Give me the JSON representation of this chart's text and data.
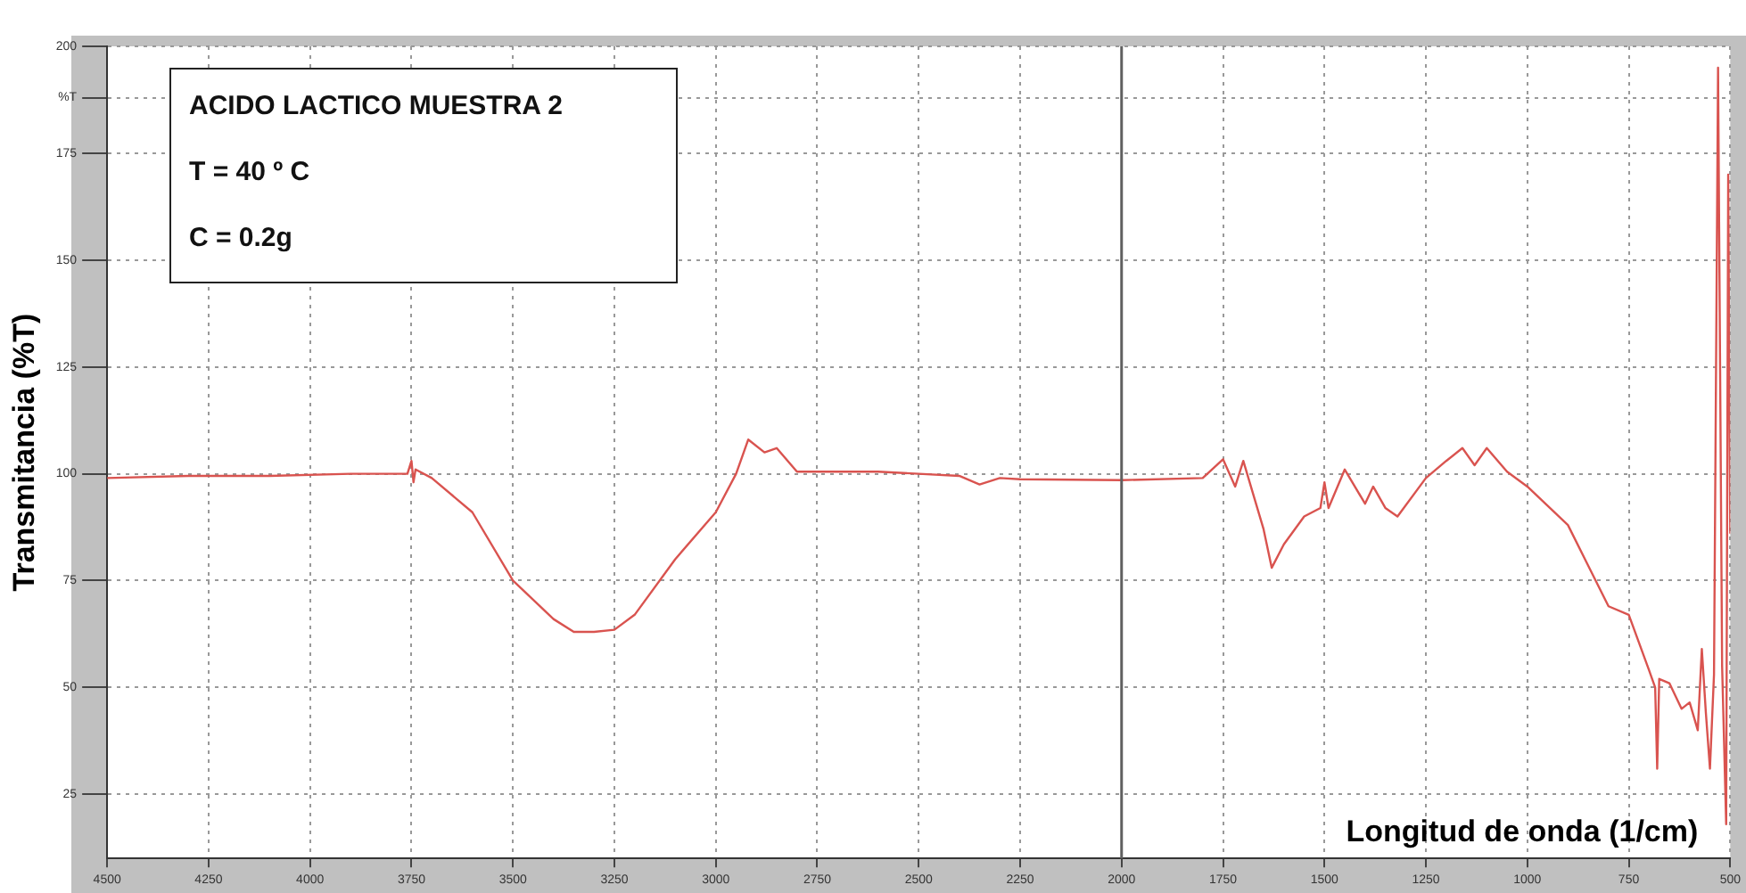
{
  "chart_data": {
    "type": "line",
    "title": "ACIDO LACTICO MUESTRA 2",
    "annotations": [
      "T = 40 º C",
      "C = 0.2g"
    ],
    "xlabel": "Longitud de onda (1/cm)",
    "ylabel": "Transmitancia (%T)",
    "x": [
      4500,
      4300,
      4100,
      3900,
      3800,
      3760,
      3750,
      3745,
      3740,
      3700,
      3600,
      3500,
      3400,
      3350,
      3300,
      3250,
      3200,
      3100,
      3000,
      2950,
      2920,
      2880,
      2850,
      2800,
      2600,
      2500,
      2400,
      2350,
      2300,
      2250,
      2000,
      1800,
      1750,
      1720,
      1700,
      1650,
      1630,
      1600,
      1550,
      1510,
      1500,
      1490,
      1450,
      1400,
      1380,
      1350,
      1320,
      1250,
      1200,
      1160,
      1130,
      1100,
      1050,
      1000,
      900,
      800,
      750,
      700,
      685,
      680,
      675,
      650,
      620,
      600,
      580,
      570,
      560,
      550,
      540,
      530,
      520,
      510,
      505,
      500
    ],
    "series": [
      {
        "color": "#d9534f",
        "values": [
          99,
          99.5,
          99.5,
          100,
          100,
          100,
          103,
          98,
          101,
          99,
          91,
          75,
          66,
          63,
          63,
          63.5,
          67,
          80,
          91,
          100,
          108,
          105,
          106,
          100.5,
          100.5,
          100,
          99.5,
          97.5,
          99,
          98.7,
          98.5,
          99,
          103.4,
          97,
          103,
          87,
          78,
          83.5,
          90,
          92,
          98,
          92,
          101,
          93,
          97,
          92,
          90,
          99,
          103,
          106,
          102,
          106,
          100.5,
          97,
          88,
          69,
          67,
          54,
          50,
          31,
          52,
          51,
          45,
          46.5,
          40,
          59,
          44,
          31,
          53,
          195,
          55,
          18,
          170,
          86
        ]
      }
    ],
    "xlim": [
      4500,
      500
    ],
    "ylim": [
      10,
      200
    ],
    "xticks": [
      4500,
      4250,
      4000,
      3750,
      3500,
      3250,
      3000,
      2750,
      2500,
      2250,
      2000,
      1750,
      1500,
      1250,
      1000,
      750,
      500
    ],
    "yticks": [
      25,
      50,
      75,
      100,
      125,
      150,
      175,
      {
        "value": 188,
        "label": "%T"
      },
      200
    ],
    "ref_lines": [
      {
        "axis": "x",
        "value": 2000,
        "color": "#606060"
      }
    ],
    "grid": true,
    "legend": false,
    "marker": "none",
    "line_style": "solid"
  }
}
